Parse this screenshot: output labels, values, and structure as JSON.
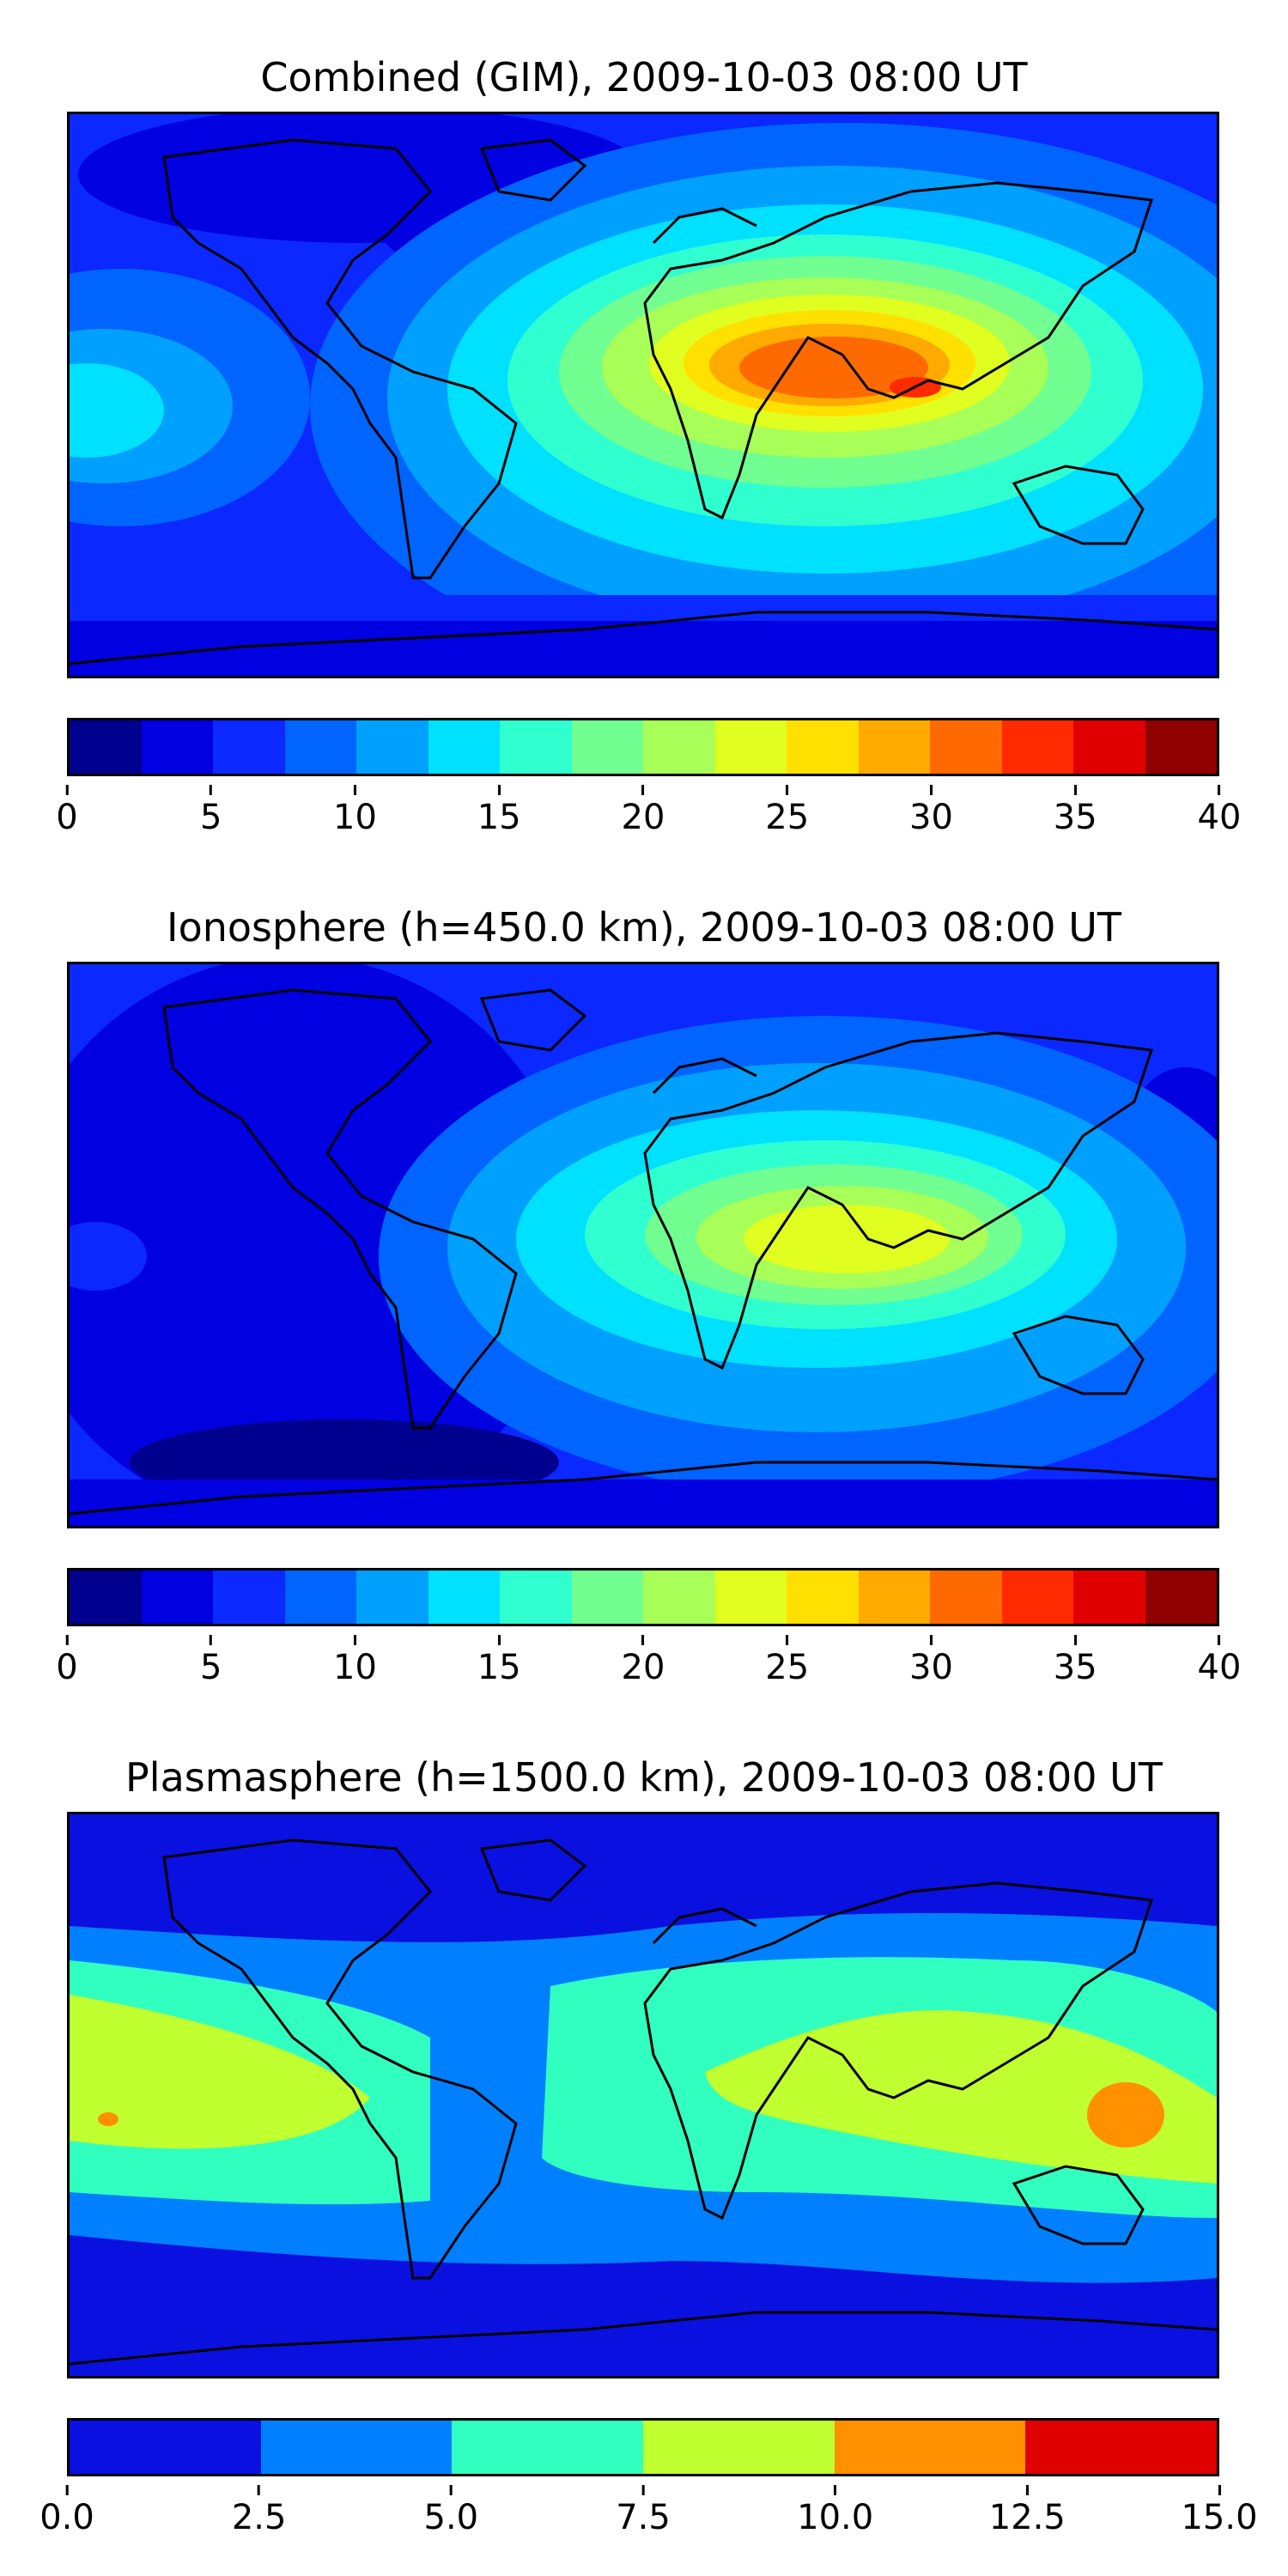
{
  "panels": [
    {
      "title": "Combined (GIM), 2009-10-03 08:00 UT",
      "colorbar": {
        "colors": [
          "#00008f",
          "#0000e0",
          "#0a28ff",
          "#0064ff",
          "#00a0ff",
          "#00e0ff",
          "#30ffd0",
          "#70ff90",
          "#a8ff58",
          "#e0ff20",
          "#ffe000",
          "#ffaa00",
          "#ff6a00",
          "#ff2a00",
          "#e00000",
          "#900000"
        ],
        "ticks": [
          "0",
          "5",
          "10",
          "15",
          "20",
          "25",
          "30",
          "35",
          "40"
        ],
        "range": [
          0,
          40
        ]
      }
    },
    {
      "title": "Ionosphere  (h=450.0 km), 2009-10-03 08:00 UT",
      "colorbar": {
        "colors": [
          "#00008f",
          "#0000e0",
          "#0a28ff",
          "#0064ff",
          "#00a0ff",
          "#00e0ff",
          "#30ffd0",
          "#70ff90",
          "#a8ff58",
          "#e0ff20",
          "#ffe000",
          "#ffaa00",
          "#ff6a00",
          "#ff2a00",
          "#e00000",
          "#900000"
        ],
        "ticks": [
          "0",
          "5",
          "10",
          "15",
          "20",
          "25",
          "30",
          "35",
          "40"
        ],
        "range": [
          0,
          40
        ]
      }
    },
    {
      "title": "Plasmasphere (h=1500.0 km), 2009-10-03 08:00 UT",
      "colorbar": {
        "colors": [
          "#0a10e0",
          "#0080ff",
          "#30ffc0",
          "#c0ff30",
          "#ff9000",
          "#e00000"
        ],
        "ticks": [
          "0.0",
          "2.5",
          "5.0",
          "7.5",
          "10.0",
          "12.5",
          "15.0"
        ],
        "range": [
          0,
          15
        ]
      }
    }
  ]
}
